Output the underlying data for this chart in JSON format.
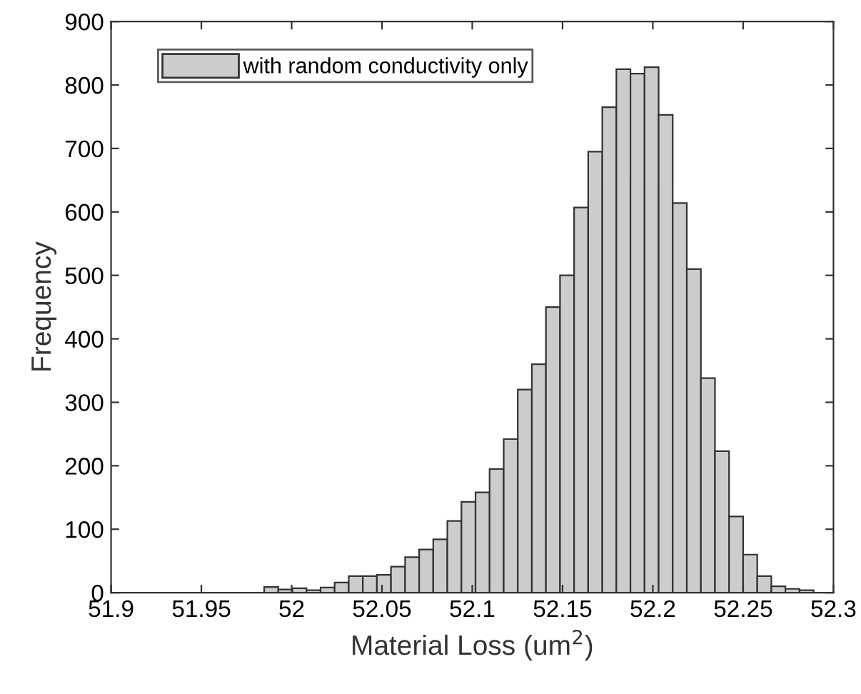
{
  "chart_data": {
    "type": "histogram",
    "xlabel": "Material Loss (um$^{2}$)",
    "ylabel": "Frequency",
    "bins": [
      51.9614,
      51.9692,
      51.977,
      51.9848,
      51.9926,
      52.0004,
      52.0082,
      52.016,
      52.0238,
      52.0316,
      52.0394,
      52.0472,
      52.055,
      52.0628,
      52.0706,
      52.0784,
      52.0862,
      52.094,
      52.1018,
      52.1096,
      52.1174,
      52.1252,
      52.133,
      52.1408,
      52.1486,
      52.1564,
      52.1642,
      52.172,
      52.1798,
      52.1876,
      52.1954,
      52.2032,
      52.211,
      52.2188,
      52.2266,
      52.2344,
      52.2422,
      52.25,
      52.2578,
      52.2656,
      52.2734,
      52.2812,
      52.289
    ],
    "series": [
      {
        "name": "with random conductivity only",
        "color": "#cccccc",
        "values": [
          null,
          null,
          null,
          9,
          5,
          7,
          4,
          8,
          16,
          26,
          26,
          28,
          41,
          56,
          68,
          84,
          113,
          143,
          158,
          195,
          242,
          320,
          360,
          450,
          500,
          607,
          695,
          765,
          825,
          818,
          828,
          753,
          614,
          510,
          338,
          223,
          120,
          60,
          26,
          10,
          6,
          4
        ]
      }
    ],
    "xlim": [
      51.9,
      52.3
    ],
    "xticks": [
      51.9,
      51.95,
      52,
      52.05,
      52.1,
      52.15,
      52.2,
      52.25,
      52.3
    ],
    "ylim": [
      0,
      900
    ],
    "yticks": [
      0,
      100,
      200,
      300,
      400,
      500,
      600,
      700,
      800,
      900
    ],
    "legend": "top left",
    "grid": false
  }
}
